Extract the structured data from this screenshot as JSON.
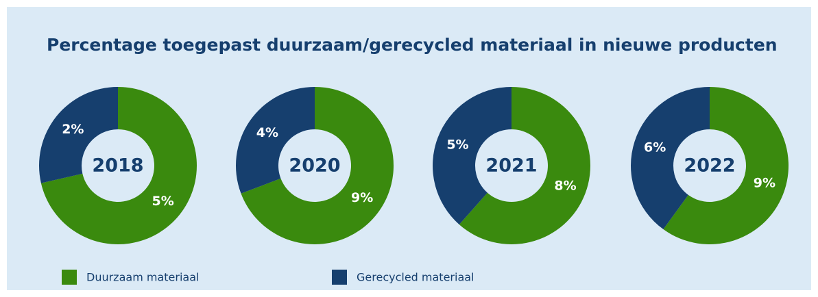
{
  "title": "Percentage toegepast duurzaam/gerecycled materiaal in nieuwe producten",
  "chart_data": [
    {
      "type": "donut",
      "center_label": "2018",
      "categories": [
        "Duurzaam materiaal",
        "Gerecycled materiaal"
      ],
      "values": [
        5,
        2
      ],
      "value_labels": [
        "5%",
        "2%"
      ],
      "colors": [
        "#3a8a0e",
        "#163f6e"
      ]
    },
    {
      "type": "donut",
      "center_label": "2020",
      "categories": [
        "Duurzaam materiaal",
        "Gerecycled materiaal"
      ],
      "values": [
        9,
        4
      ],
      "value_labels": [
        "9%",
        "4%"
      ],
      "colors": [
        "#3a8a0e",
        "#163f6e"
      ]
    },
    {
      "type": "donut",
      "center_label": "2021",
      "categories": [
        "Duurzaam materiaal",
        "Gerecycled materiaal"
      ],
      "values": [
        8,
        5
      ],
      "value_labels": [
        "8%",
        "5%"
      ],
      "colors": [
        "#3a8a0e",
        "#163f6e"
      ]
    },
    {
      "type": "donut",
      "center_label": "2022",
      "categories": [
        "Duurzaam materiaal",
        "Gerecycled materiaal"
      ],
      "values": [
        9,
        6
      ],
      "value_labels": [
        "9%",
        "6%"
      ],
      "colors": [
        "#3a8a0e",
        "#163f6e"
      ]
    }
  ]
}
